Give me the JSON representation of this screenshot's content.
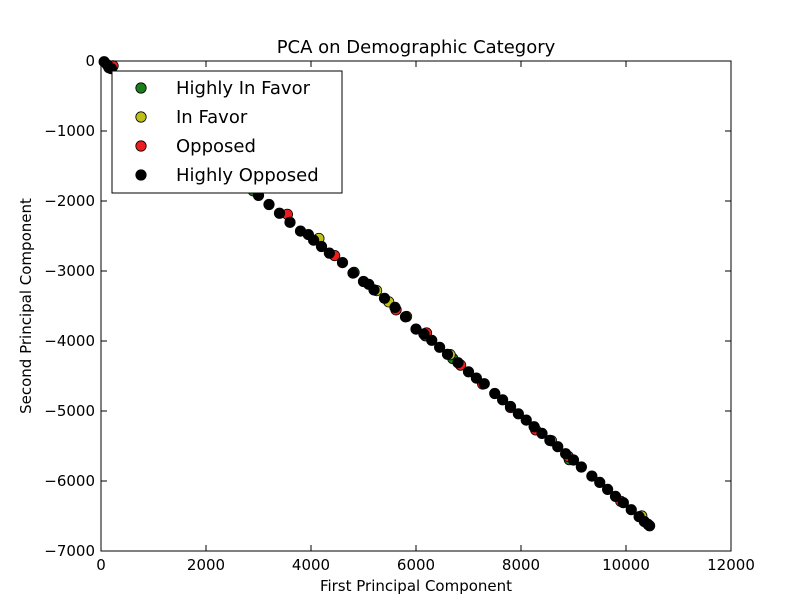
{
  "chart_data": {
    "type": "scatter",
    "title": "PCA on Demographic Category",
    "xlabel": "First Principal Component",
    "ylabel": "Second Principal Component",
    "xlim": [
      0,
      12000
    ],
    "ylim": [
      -7000,
      0
    ],
    "xticks": [
      0,
      2000,
      4000,
      6000,
      8000,
      10000,
      12000
    ],
    "yticks": [
      0,
      -1000,
      -2000,
      -3000,
      -4000,
      -5000,
      -6000,
      -7000
    ],
    "xtick_labels": [
      "0",
      "2000",
      "4000",
      "6000",
      "8000",
      "10000",
      "12000"
    ],
    "ytick_labels": [
      "0",
      "−1000",
      "−2000",
      "−3000",
      "−4000",
      "−5000",
      "−6000",
      "−7000"
    ],
    "grid": false,
    "legend_position": "upper-left",
    "series": [
      {
        "name": "Highly In Favor",
        "color": "#1a7f1a",
        "points": [
          [
            150,
            -95
          ],
          [
            2900,
            -1855
          ],
          [
            4820,
            -3020
          ],
          [
            6180,
            -3925
          ],
          [
            6700,
            -4250
          ],
          [
            8920,
            -5695
          ]
        ]
      },
      {
        "name": "In Favor",
        "color": "#bfbf1a",
        "points": [
          [
            180,
            -105
          ],
          [
            4150,
            -2535
          ],
          [
            5250,
            -3280
          ],
          [
            5480,
            -3440
          ],
          [
            5820,
            -3650
          ],
          [
            6650,
            -4195
          ],
          [
            8580,
            -5425
          ],
          [
            10300,
            -6500
          ]
        ]
      },
      {
        "name": "Opposed",
        "color": "#ee1c1c",
        "points": [
          [
            230,
            -70
          ],
          [
            3550,
            -2190
          ],
          [
            4450,
            -2780
          ],
          [
            5620,
            -3555
          ],
          [
            6200,
            -3885
          ],
          [
            6850,
            -4345
          ],
          [
            7270,
            -4615
          ],
          [
            7800,
            -4950
          ],
          [
            8280,
            -5270
          ],
          [
            8900,
            -5650
          ],
          [
            9900,
            -6290
          ]
        ]
      },
      {
        "name": "Highly Opposed",
        "color": "#000000",
        "points": [
          [
            60,
            -10
          ],
          [
            120,
            -55
          ],
          [
            200,
            -110
          ],
          [
            2800,
            -1790
          ],
          [
            3000,
            -1920
          ],
          [
            3200,
            -2050
          ],
          [
            3400,
            -2175
          ],
          [
            3600,
            -2305
          ],
          [
            3800,
            -2430
          ],
          [
            3950,
            -2480
          ],
          [
            4050,
            -2560
          ],
          [
            4200,
            -2650
          ],
          [
            4350,
            -2745
          ],
          [
            4600,
            -2880
          ],
          [
            4800,
            -3030
          ],
          [
            5000,
            -3150
          ],
          [
            5100,
            -3190
          ],
          [
            5200,
            -3270
          ],
          [
            5400,
            -3390
          ],
          [
            5600,
            -3520
          ],
          [
            5800,
            -3655
          ],
          [
            6000,
            -3830
          ],
          [
            6150,
            -3900
          ],
          [
            6300,
            -3990
          ],
          [
            6450,
            -4090
          ],
          [
            6600,
            -4190
          ],
          [
            6800,
            -4310
          ],
          [
            7000,
            -4440
          ],
          [
            7150,
            -4530
          ],
          [
            7300,
            -4610
          ],
          [
            7500,
            -4750
          ],
          [
            7650,
            -4840
          ],
          [
            7800,
            -4935
          ],
          [
            7950,
            -5040
          ],
          [
            8100,
            -5130
          ],
          [
            8250,
            -5225
          ],
          [
            8400,
            -5320
          ],
          [
            8550,
            -5420
          ],
          [
            8700,
            -5510
          ],
          [
            8850,
            -5610
          ],
          [
            9000,
            -5700
          ],
          [
            9150,
            -5800
          ],
          [
            9350,
            -5930
          ],
          [
            9500,
            -6020
          ],
          [
            9650,
            -6120
          ],
          [
            9800,
            -6220
          ],
          [
            9950,
            -6310
          ],
          [
            10100,
            -6410
          ],
          [
            10250,
            -6510
          ],
          [
            10350,
            -6580
          ],
          [
            10420,
            -6620
          ],
          [
            10450,
            -6640
          ]
        ]
      }
    ]
  }
}
